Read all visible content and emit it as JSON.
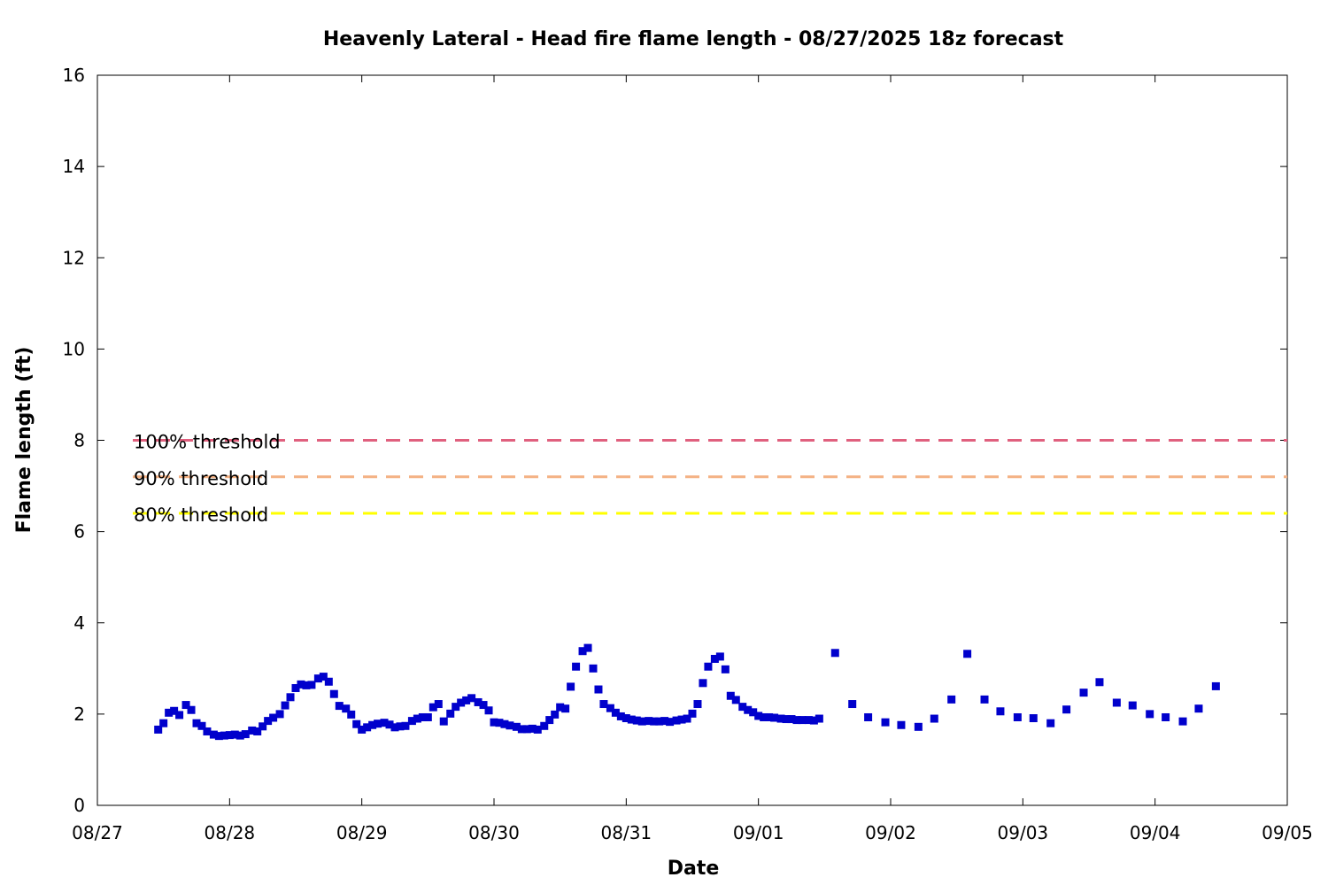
{
  "chart_data": {
    "type": "scatter",
    "title": "Heavenly Lateral - Head fire flame length - 08/27/2025 18z forecast",
    "xlabel": "Date",
    "ylabel": "Flame length (ft)",
    "x_ticks": [
      "08/27",
      "08/28",
      "08/29",
      "08/30",
      "08/31",
      "09/01",
      "09/02",
      "09/03",
      "09/04",
      "09/05"
    ],
    "y_ticks": [
      "0",
      "2",
      "4",
      "6",
      "8",
      "10",
      "12",
      "14",
      "16"
    ],
    "xlim_days": [
      0,
      9
    ],
    "ylim": [
      0,
      16
    ],
    "grid": false,
    "thresholds": [
      {
        "label": "100% threshold",
        "value": 8.0,
        "color": "#e0607e"
      },
      {
        "label": "90% threshold",
        "value": 7.2,
        "color": "#f4b183"
      },
      {
        "label": "80% threshold",
        "value": 6.4,
        "color": "#ffff00"
      }
    ],
    "series": [
      {
        "color": "#0000cc",
        "x_unit": "days after 08/27 00z",
        "points": [
          [
            0.46,
            1.66
          ],
          [
            0.5,
            1.8
          ],
          [
            0.54,
            2.03
          ],
          [
            0.58,
            2.07
          ],
          [
            0.62,
            1.98
          ],
          [
            0.67,
            2.2
          ],
          [
            0.71,
            2.09
          ],
          [
            0.75,
            1.8
          ],
          [
            0.79,
            1.74
          ],
          [
            0.83,
            1.62
          ],
          [
            0.88,
            1.55
          ],
          [
            0.92,
            1.52
          ],
          [
            0.96,
            1.53
          ],
          [
            1.0,
            1.54
          ],
          [
            1.04,
            1.55
          ],
          [
            1.08,
            1.53
          ],
          [
            1.12,
            1.56
          ],
          [
            1.17,
            1.64
          ],
          [
            1.21,
            1.62
          ],
          [
            1.25,
            1.73
          ],
          [
            1.29,
            1.85
          ],
          [
            1.33,
            1.92
          ],
          [
            1.38,
            2.0
          ],
          [
            1.42,
            2.19
          ],
          [
            1.46,
            2.37
          ],
          [
            1.5,
            2.57
          ],
          [
            1.54,
            2.65
          ],
          [
            1.58,
            2.63
          ],
          [
            1.62,
            2.64
          ],
          [
            1.67,
            2.78
          ],
          [
            1.71,
            2.82
          ],
          [
            1.75,
            2.71
          ],
          [
            1.79,
            2.44
          ],
          [
            1.83,
            2.18
          ],
          [
            1.88,
            2.12
          ],
          [
            1.92,
            1.99
          ],
          [
            1.96,
            1.78
          ],
          [
            2.0,
            1.66
          ],
          [
            2.04,
            1.71
          ],
          [
            2.08,
            1.76
          ],
          [
            2.12,
            1.79
          ],
          [
            2.17,
            1.81
          ],
          [
            2.21,
            1.77
          ],
          [
            2.25,
            1.71
          ],
          [
            2.29,
            1.73
          ],
          [
            2.33,
            1.74
          ],
          [
            2.38,
            1.85
          ],
          [
            2.42,
            1.9
          ],
          [
            2.46,
            1.93
          ],
          [
            2.5,
            1.93
          ],
          [
            2.54,
            2.15
          ],
          [
            2.58,
            2.22
          ],
          [
            2.62,
            1.84
          ],
          [
            2.67,
            2.01
          ],
          [
            2.71,
            2.16
          ],
          [
            2.75,
            2.25
          ],
          [
            2.79,
            2.3
          ],
          [
            2.83,
            2.35
          ],
          [
            2.88,
            2.26
          ],
          [
            2.92,
            2.2
          ],
          [
            2.96,
            2.08
          ],
          [
            3.0,
            1.82
          ],
          [
            3.04,
            1.81
          ],
          [
            3.08,
            1.78
          ],
          [
            3.12,
            1.75
          ],
          [
            3.17,
            1.72
          ],
          [
            3.21,
            1.67
          ],
          [
            3.25,
            1.67
          ],
          [
            3.29,
            1.68
          ],
          [
            3.33,
            1.66
          ],
          [
            3.38,
            1.74
          ],
          [
            3.42,
            1.87
          ],
          [
            3.46,
            1.99
          ],
          [
            3.5,
            2.15
          ],
          [
            3.54,
            2.12
          ],
          [
            3.58,
            2.6
          ],
          [
            3.62,
            3.04
          ],
          [
            3.67,
            3.38
          ],
          [
            3.71,
            3.45
          ],
          [
            3.75,
            3.0
          ],
          [
            3.79,
            2.54
          ],
          [
            3.83,
            2.22
          ],
          [
            3.88,
            2.13
          ],
          [
            3.92,
            2.03
          ],
          [
            3.96,
            1.95
          ],
          [
            4.0,
            1.91
          ],
          [
            4.04,
            1.88
          ],
          [
            4.08,
            1.86
          ],
          [
            4.12,
            1.84
          ],
          [
            4.17,
            1.85
          ],
          [
            4.21,
            1.84
          ],
          [
            4.25,
            1.84
          ],
          [
            4.29,
            1.85
          ],
          [
            4.33,
            1.83
          ],
          [
            4.38,
            1.86
          ],
          [
            4.42,
            1.88
          ],
          [
            4.46,
            1.9
          ],
          [
            4.5,
            2.01
          ],
          [
            4.54,
            2.22
          ],
          [
            4.58,
            2.68
          ],
          [
            4.62,
            3.04
          ],
          [
            4.67,
            3.21
          ],
          [
            4.71,
            3.26
          ],
          [
            4.75,
            2.98
          ],
          [
            4.79,
            2.4
          ],
          [
            4.83,
            2.31
          ],
          [
            4.88,
            2.16
          ],
          [
            4.92,
            2.09
          ],
          [
            4.96,
            2.04
          ],
          [
            5.0,
            1.96
          ],
          [
            5.04,
            1.93
          ],
          [
            5.08,
            1.93
          ],
          [
            5.12,
            1.92
          ],
          [
            5.17,
            1.9
          ],
          [
            5.21,
            1.89
          ],
          [
            5.25,
            1.89
          ],
          [
            5.29,
            1.87
          ],
          [
            5.33,
            1.87
          ],
          [
            5.38,
            1.87
          ],
          [
            5.42,
            1.86
          ],
          [
            5.46,
            1.9
          ],
          [
            5.58,
            3.34
          ],
          [
            5.71,
            2.22
          ],
          [
            5.83,
            1.93
          ],
          [
            5.96,
            1.82
          ],
          [
            6.08,
            1.76
          ],
          [
            6.21,
            1.72
          ],
          [
            6.33,
            1.9
          ],
          [
            6.46,
            2.32
          ],
          [
            6.58,
            3.32
          ],
          [
            6.71,
            2.32
          ],
          [
            6.83,
            2.06
          ],
          [
            6.96,
            1.93
          ],
          [
            7.08,
            1.91
          ],
          [
            7.21,
            1.8
          ],
          [
            7.33,
            2.1
          ],
          [
            7.46,
            2.47
          ],
          [
            7.58,
            2.7
          ],
          [
            7.71,
            2.25
          ],
          [
            7.83,
            2.19
          ],
          [
            7.96,
            2.0
          ],
          [
            8.08,
            1.93
          ],
          [
            8.21,
            1.84
          ],
          [
            8.33,
            2.12
          ],
          [
            8.46,
            2.61
          ]
        ]
      }
    ]
  }
}
